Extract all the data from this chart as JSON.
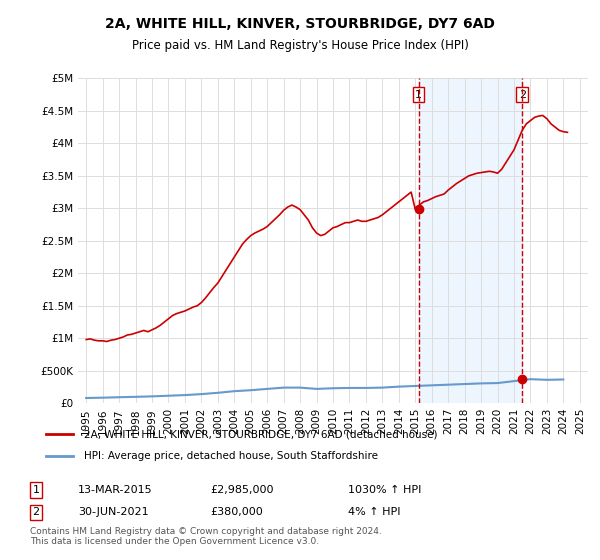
{
  "title": "2A, WHITE HILL, KINVER, STOURBRIDGE, DY7 6AD",
  "subtitle": "Price paid vs. HM Land Registry's House Price Index (HPI)",
  "xlabel": "",
  "ylabel": "",
  "ylim": [
    0,
    5000000
  ],
  "xlim": [
    1994.5,
    2025.5
  ],
  "yticks": [
    0,
    500000,
    1000000,
    1500000,
    2000000,
    2500000,
    3000000,
    3500000,
    4000000,
    4500000,
    5000000
  ],
  "ytick_labels": [
    "£0",
    "£500K",
    "£1M",
    "£1.5M",
    "£2M",
    "£2.5M",
    "£3M",
    "£3.5M",
    "£4M",
    "£4.5M",
    "£5M"
  ],
  "xticks": [
    1995,
    1996,
    1997,
    1998,
    1999,
    2000,
    2001,
    2002,
    2003,
    2004,
    2005,
    2006,
    2007,
    2008,
    2009,
    2010,
    2011,
    2012,
    2013,
    2014,
    2015,
    2016,
    2017,
    2018,
    2019,
    2020,
    2021,
    2022,
    2023,
    2024,
    2025
  ],
  "red_line_color": "#cc0000",
  "blue_line_color": "#6699cc",
  "dashed_line_color": "#cc0000",
  "point1_x": 2015.2,
  "point1_y": 2985000,
  "point2_x": 2021.5,
  "point2_y": 380000,
  "legend_label_red": "2A, WHITE HILL, KINVER, STOURBRIDGE, DY7 6AD (detached house)",
  "legend_label_blue": "HPI: Average price, detached house, South Staffordshire",
  "table_row1": [
    "1",
    "13-MAR-2015",
    "£2,985,000",
    "1030% ↑ HPI"
  ],
  "table_row2": [
    "2",
    "30-JUN-2021",
    "£380,000",
    "4% ↑ HPI"
  ],
  "footer": "Contains HM Land Registry data © Crown copyright and database right 2024.\nThis data is licensed under the Open Government Licence v3.0.",
  "background_color": "#ffffff",
  "grid_color": "#dddddd",
  "shaded_region_color": "#ddeeff",
  "red_hpi_x": [
    1995.0,
    1995.25,
    1995.5,
    1995.75,
    1996.0,
    1996.25,
    1996.5,
    1996.75,
    1997.0,
    1997.25,
    1997.5,
    1997.75,
    1998.0,
    1998.25,
    1998.5,
    1998.75,
    1999.0,
    1999.25,
    1999.5,
    1999.75,
    2000.0,
    2000.25,
    2000.5,
    2000.75,
    2001.0,
    2001.25,
    2001.5,
    2001.75,
    2002.0,
    2002.25,
    2002.5,
    2002.75,
    2003.0,
    2003.25,
    2003.5,
    2003.75,
    2004.0,
    2004.25,
    2004.5,
    2004.75,
    2005.0,
    2005.25,
    2005.5,
    2005.75,
    2006.0,
    2006.25,
    2006.5,
    2006.75,
    2007.0,
    2007.25,
    2007.5,
    2007.75,
    2008.0,
    2008.25,
    2008.5,
    2008.75,
    2009.0,
    2009.25,
    2009.5,
    2009.75,
    2010.0,
    2010.25,
    2010.5,
    2010.75,
    2011.0,
    2011.25,
    2011.5,
    2011.75,
    2012.0,
    2012.25,
    2012.5,
    2012.75,
    2013.0,
    2013.25,
    2013.5,
    2013.75,
    2014.0,
    2014.25,
    2014.5,
    2014.75,
    2015.0,
    2015.25,
    2015.5,
    2015.75,
    2016.0,
    2016.25,
    2016.5,
    2016.75,
    2017.0,
    2017.25,
    2017.5,
    2017.75,
    2018.0,
    2018.25,
    2018.5,
    2018.75,
    2019.0,
    2019.25,
    2019.5,
    2019.75,
    2020.0,
    2020.25,
    2020.5,
    2020.75,
    2021.0,
    2021.25,
    2021.5,
    2021.75,
    2022.0,
    2022.25,
    2022.5,
    2022.75,
    2023.0,
    2023.25,
    2023.5,
    2023.75,
    2024.0,
    2024.25
  ],
  "red_hpi_y": [
    980000,
    990000,
    970000,
    960000,
    960000,
    950000,
    970000,
    980000,
    1000000,
    1020000,
    1050000,
    1060000,
    1080000,
    1100000,
    1120000,
    1100000,
    1130000,
    1160000,
    1200000,
    1250000,
    1300000,
    1350000,
    1380000,
    1400000,
    1420000,
    1450000,
    1480000,
    1500000,
    1550000,
    1620000,
    1700000,
    1780000,
    1850000,
    1950000,
    2050000,
    2150000,
    2250000,
    2350000,
    2450000,
    2520000,
    2580000,
    2620000,
    2650000,
    2680000,
    2720000,
    2780000,
    2840000,
    2900000,
    2970000,
    3020000,
    3050000,
    3020000,
    2980000,
    2900000,
    2820000,
    2700000,
    2620000,
    2580000,
    2600000,
    2650000,
    2700000,
    2720000,
    2750000,
    2780000,
    2780000,
    2800000,
    2820000,
    2800000,
    2800000,
    2820000,
    2840000,
    2860000,
    2900000,
    2950000,
    3000000,
    3050000,
    3100000,
    3150000,
    3200000,
    3250000,
    2985000,
    3050000,
    3100000,
    3120000,
    3150000,
    3180000,
    3200000,
    3220000,
    3280000,
    3330000,
    3380000,
    3420000,
    3460000,
    3500000,
    3520000,
    3540000,
    3550000,
    3560000,
    3570000,
    3560000,
    3540000,
    3600000,
    3700000,
    3800000,
    3900000,
    4050000,
    4200000,
    4300000,
    4350000,
    4400000,
    4420000,
    4430000,
    4380000,
    4300000,
    4250000,
    4200000,
    4180000,
    4170000
  ],
  "blue_hpi_x": [
    1995.0,
    1996.0,
    1997.0,
    1998.0,
    1999.0,
    2000.0,
    2001.0,
    2002.0,
    2003.0,
    2004.0,
    2005.0,
    2006.0,
    2007.0,
    2008.0,
    2009.0,
    2010.0,
    2011.0,
    2012.0,
    2013.0,
    2014.0,
    2015.0,
    2016.0,
    2017.0,
    2018.0,
    2019.0,
    2020.0,
    2021.0,
    2022.0,
    2023.0,
    2024.0
  ],
  "blue_hpi_y": [
    80000,
    85000,
    92000,
    98000,
    105000,
    115000,
    125000,
    140000,
    160000,
    185000,
    200000,
    220000,
    240000,
    240000,
    220000,
    230000,
    235000,
    235000,
    240000,
    255000,
    265000,
    275000,
    285000,
    295000,
    305000,
    310000,
    340000,
    370000,
    360000,
    365000
  ]
}
